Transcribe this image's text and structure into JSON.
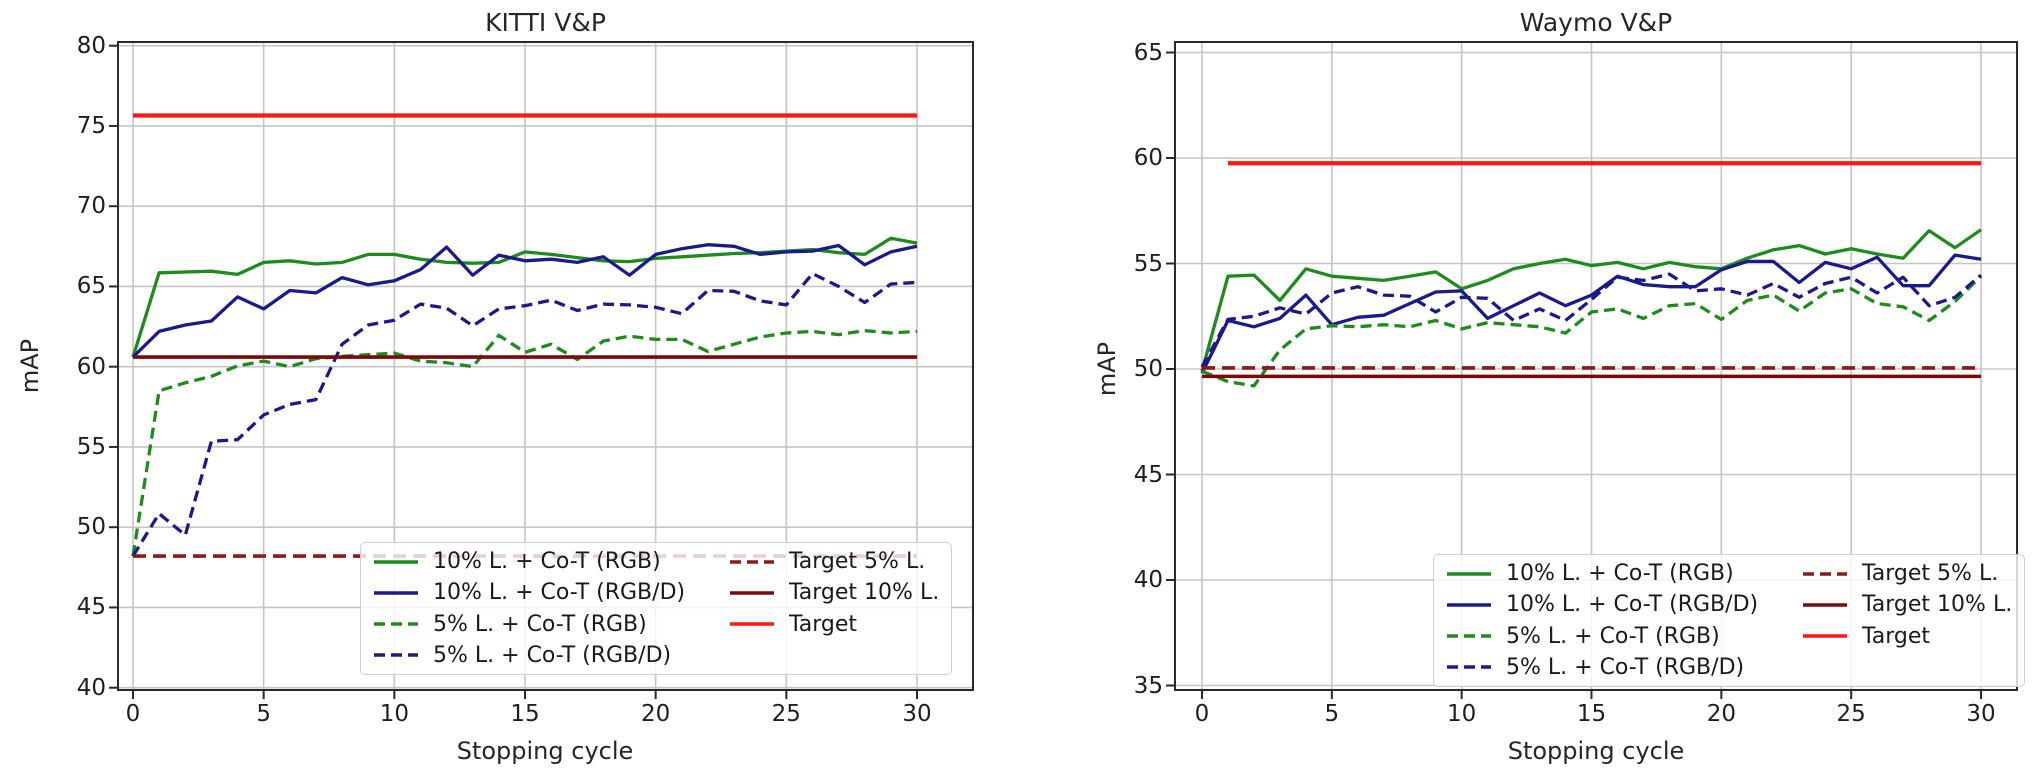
{
  "figure": {
    "type": "matplotlib-style line figure",
    "background": "#ffffff"
  },
  "chart_data": [
    {
      "type": "line",
      "title": "KITTI V&P",
      "xlabel": "Stopping cycle",
      "ylabel": "mAP",
      "xlim": [
        -0.6,
        32.2
      ],
      "ylim": [
        39.8,
        80.2
      ],
      "x_ticks": [
        0,
        5,
        10,
        15,
        20,
        25,
        30
      ],
      "y_ticks": [
        80,
        75,
        70,
        65,
        60,
        55,
        50,
        45,
        40
      ],
      "grid": true,
      "legend_position": "lower right",
      "x": [
        0,
        1,
        2,
        3,
        4,
        5,
        6,
        7,
        8,
        9,
        10,
        11,
        12,
        13,
        14,
        15,
        16,
        17,
        18,
        19,
        20,
        21,
        22,
        23,
        24,
        25,
        26,
        27,
        28,
        29,
        30
      ],
      "series": [
        {
          "name": "10% L. + Co-T (RGB)",
          "color": "#1f8b1f",
          "style": "solid",
          "values": [
            60.6,
            65.85,
            65.9,
            65.95,
            65.75,
            66.5,
            66.6,
            66.4,
            66.5,
            67.0,
            67.0,
            66.7,
            66.5,
            66.45,
            66.5,
            67.15,
            67.0,
            66.8,
            66.6,
            66.55,
            66.75,
            66.85,
            66.95,
            67.05,
            67.1,
            67.2,
            67.3,
            67.1,
            67.0,
            68.0,
            67.7
          ]
        },
        {
          "name": "10% L. + Co-T (RGB/D)",
          "color": "#1a1a8c",
          "style": "solid",
          "values": [
            60.6,
            62.2,
            62.6,
            62.85,
            64.35,
            63.6,
            64.75,
            64.6,
            65.55,
            65.1,
            65.35,
            66.05,
            67.45,
            65.7,
            66.95,
            66.6,
            66.7,
            66.5,
            66.85,
            65.7,
            67.0,
            67.35,
            67.6,
            67.5,
            67.0,
            67.15,
            67.2,
            67.55,
            66.35,
            67.15,
            67.5
          ]
        },
        {
          "name": "5% L. + Co-T (RGB)",
          "color": "#1f8b1f",
          "style": "dashed",
          "values": [
            48.2,
            58.5,
            59.0,
            59.4,
            60.05,
            60.35,
            60.0,
            60.5,
            60.65,
            60.75,
            60.85,
            60.35,
            60.25,
            60.0,
            61.95,
            60.9,
            61.4,
            60.45,
            61.6,
            61.9,
            61.7,
            61.7,
            60.95,
            61.4,
            61.85,
            62.1,
            62.2,
            62.0,
            62.25,
            62.1,
            62.2
          ]
        },
        {
          "name": "5% L. + Co-T (RGB/D)",
          "color": "#1a1a8c",
          "style": "dashed",
          "values": [
            48.2,
            50.85,
            49.5,
            55.35,
            55.45,
            57.0,
            57.65,
            57.95,
            61.4,
            62.6,
            62.9,
            63.9,
            63.65,
            62.55,
            63.6,
            63.8,
            64.15,
            63.5,
            63.9,
            63.85,
            63.7,
            63.3,
            64.75,
            64.7,
            64.1,
            63.85,
            65.8,
            65.0,
            64.0,
            65.15,
            65.25
          ]
        }
      ],
      "target_lines": [
        {
          "name": "Target 5% L.",
          "color": "#8b1a1a",
          "style": "dashed",
          "value": 48.2,
          "x_start": 0,
          "x_end": 30
        },
        {
          "name": "Target 10% L.",
          "color": "#7a0a0a",
          "style": "solid",
          "value": 60.6,
          "x_start": 0,
          "x_end": 30
        },
        {
          "name": "Target",
          "color": "#ff1616",
          "style": "solid",
          "value": 75.65,
          "x_start": 0,
          "x_end": 30
        }
      ]
    },
    {
      "type": "line",
      "title": "Waymo V&P",
      "xlabel": "Stopping cycle",
      "ylabel": "mAP",
      "xlim": [
        -1.0,
        31.4
      ],
      "ylim": [
        34.5,
        65.5
      ],
      "x_ticks": [
        0,
        5,
        10,
        15,
        20,
        25,
        30
      ],
      "y_ticks": [
        65,
        60,
        55,
        50,
        45,
        40,
        35
      ],
      "grid": true,
      "legend_position": "lower right",
      "x": [
        0,
        1,
        2,
        3,
        4,
        5,
        6,
        7,
        8,
        9,
        10,
        11,
        12,
        13,
        14,
        15,
        16,
        17,
        18,
        19,
        20,
        21,
        22,
        23,
        24,
        25,
        26,
        27,
        28,
        29,
        30
      ],
      "series": [
        {
          "name": "10% L. + Co-T (RGB)",
          "color": "#1f8b1f",
          "style": "solid",
          "values": [
            49.9,
            54.4,
            54.45,
            53.25,
            54.75,
            54.4,
            54.3,
            54.2,
            54.4,
            54.6,
            53.8,
            54.2,
            54.75,
            55.0,
            55.2,
            54.9,
            55.05,
            54.75,
            55.05,
            54.85,
            54.75,
            55.25,
            55.65,
            55.85,
            55.45,
            55.7,
            55.45,
            55.25,
            56.55,
            55.75,
            56.6
          ]
        },
        {
          "name": "10% L. + Co-T (RGB/D)",
          "color": "#1a1a8c",
          "style": "solid",
          "values": [
            49.8,
            52.3,
            52.0,
            52.4,
            53.5,
            52.1,
            52.45,
            52.55,
            53.1,
            53.65,
            53.7,
            52.4,
            53.0,
            53.6,
            53.0,
            53.5,
            54.4,
            54.0,
            53.9,
            53.9,
            54.7,
            55.1,
            55.1,
            54.1,
            55.05,
            54.75,
            55.3,
            53.95,
            53.95,
            55.4,
            55.2
          ]
        },
        {
          "name": "5% L. + Co-T (RGB)",
          "color": "#1f8b1f",
          "style": "dashed",
          "values": [
            49.9,
            49.4,
            49.2,
            50.9,
            51.9,
            52.05,
            52.0,
            52.1,
            52.0,
            52.3,
            51.9,
            52.2,
            52.1,
            52.0,
            51.7,
            52.7,
            52.85,
            52.4,
            53.0,
            53.1,
            52.35,
            53.25,
            53.5,
            52.75,
            53.6,
            53.8,
            53.1,
            52.95,
            52.3,
            53.2,
            54.4
          ]
        },
        {
          "name": "5% L. + Co-T (RGB/D)",
          "color": "#1a1a8c",
          "style": "dashed",
          "values": [
            50.1,
            52.35,
            52.5,
            52.9,
            52.6,
            53.6,
            53.9,
            53.5,
            53.45,
            52.7,
            53.4,
            53.35,
            52.3,
            52.85,
            52.3,
            53.3,
            54.35,
            54.2,
            54.5,
            53.7,
            53.8,
            53.5,
            54.05,
            53.4,
            54.05,
            54.35,
            53.6,
            54.35,
            53.0,
            53.4,
            54.45
          ]
        }
      ],
      "target_lines": [
        {
          "name": "Target 5% L.",
          "color": "#8b1a1a",
          "style": "dashed",
          "value": 50.05,
          "x_start": 0,
          "x_end": 30
        },
        {
          "name": "Target 10% L.",
          "color": "#7a0a0a",
          "style": "solid",
          "value": 49.65,
          "x_start": 0,
          "x_end": 30
        },
        {
          "name": "Target",
          "color": "#ff1616",
          "style": "solid",
          "value": 59.75,
          "x_start": 1,
          "x_end": 30
        }
      ]
    }
  ]
}
